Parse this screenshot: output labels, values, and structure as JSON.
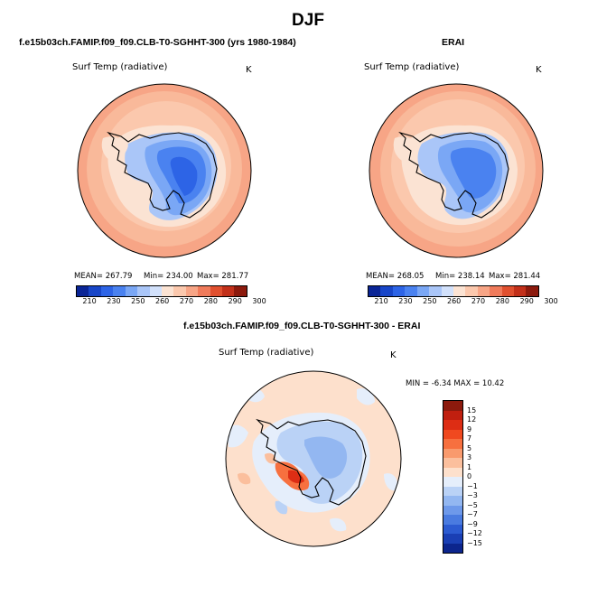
{
  "page": {
    "title": "DJF",
    "panel_left_title": "f.e15b03ch.FAMIP.f09_f09.CLB-T0-SGHHT-300 (yrs 1980-1984)",
    "panel_right_title": "ERAI",
    "panel_diff_title": "f.e15b03ch.FAMIP.f09_f09.CLB-T0-SGHHT-300 - ERAI"
  },
  "maps": {
    "left": {
      "field": "Surf Temp (radiative)",
      "units": "K",
      "mean": "MEAN= 267.79",
      "min": "Min= 234.00",
      "max": "Max= 281.77"
    },
    "right": {
      "field": "Surf Temp (radiative)",
      "units": "K",
      "mean": "MEAN= 268.05",
      "min": "Min= 238.14",
      "max": "Max= 281.44"
    },
    "diff": {
      "field": "Surf Temp (radiative)",
      "units": "K",
      "minmax": "MIN =   -6.34  MAX =   10.42"
    }
  },
  "colorbar_abs": {
    "labels": [
      "210",
      "230",
      "250",
      "260",
      "270",
      "280",
      "290",
      "300"
    ],
    "colors": [
      "#0a2596",
      "#1846c8",
      "#2d64e6",
      "#4a82f0",
      "#7aa7f5",
      "#aac6f8",
      "#d2e1fb",
      "#fbe3d3",
      "#fbc8ad",
      "#f7a586",
      "#f07b5b",
      "#e0502f",
      "#c2301a",
      "#8c1a0d"
    ]
  },
  "colorbar_diff": {
    "labels": [
      "15",
      "12",
      "9",
      "7",
      "5",
      "3",
      "1",
      "0",
      "−1",
      "−3",
      "−5",
      "−7",
      "−9",
      "−12",
      "−15"
    ],
    "colors": [
      "#8c1a0d",
      "#c01f0f",
      "#dd2d14",
      "#f0491f",
      "#f7703f",
      "#f99a6d",
      "#fbbf9d",
      "#fde0cc",
      "#e5eefb",
      "#bad2f6",
      "#93b7f1",
      "#6e99ea",
      "#4a7be0",
      "#2c5bd1",
      "#1a3fb4",
      "#0c258d"
    ]
  }
}
